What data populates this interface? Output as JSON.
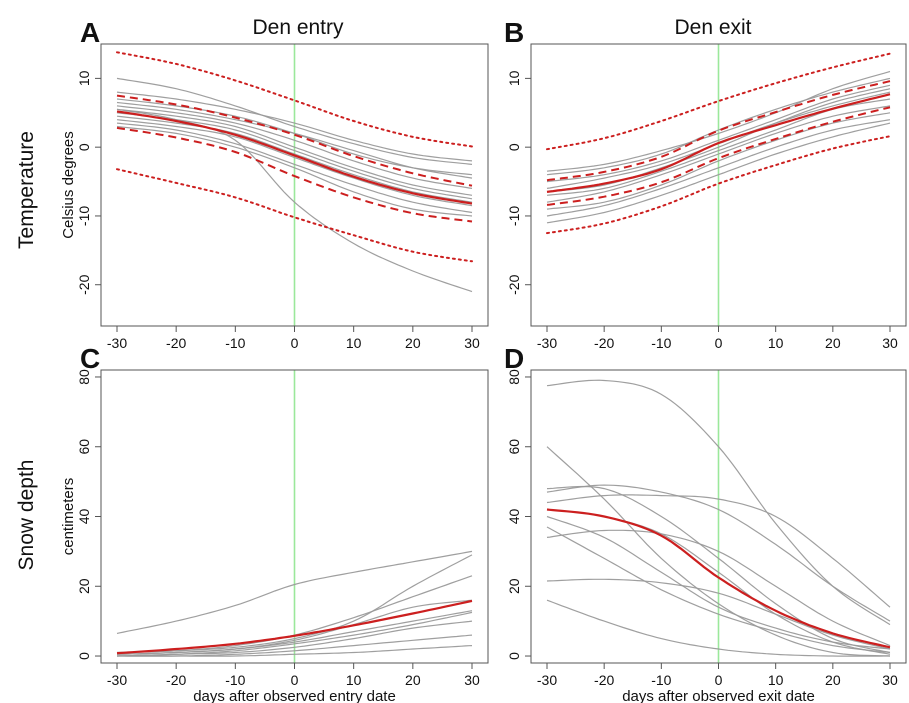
{
  "figure": {
    "column_titles": [
      "Den entry",
      "Den exit"
    ],
    "row_titles": [
      "Temperature",
      "Snow depth"
    ]
  },
  "colors": {
    "individual_lines": "#9a9a9a",
    "mean_line": "#cc1f1f",
    "observed_date_marker": "#9be89b",
    "axes": "#555555"
  },
  "chart_data": [
    {
      "panel": "A",
      "type": "line",
      "column": "Den entry",
      "row": "Temperature",
      "xlabel": "",
      "ylabel": "Celsius degrees",
      "xlim": [
        -30,
        30
      ],
      "ylim": [
        -26,
        15
      ],
      "xticks": [
        -30,
        -20,
        -10,
        0,
        10,
        20,
        30
      ],
      "yticks": [
        -20,
        -10,
        0,
        10
      ],
      "marker_x": 0,
      "individual_curves": [
        {
          "y": [
            10,
            8.5,
            6,
            3,
            0.5,
            -1.5,
            -2.5
          ]
        },
        {
          "y": [
            8,
            7,
            5.5,
            3.5,
            1,
            -1,
            -2
          ]
        },
        {
          "y": [
            6.5,
            5.5,
            4,
            2,
            -0.5,
            -3,
            -4.5
          ]
        },
        {
          "y": [
            6,
            5,
            3.5,
            1,
            -2,
            -4.5,
            -6
          ]
        },
        {
          "y": [
            5.5,
            4.5,
            3,
            0,
            -3,
            -5.5,
            -7
          ]
        },
        {
          "y": [
            5,
            4,
            2.5,
            -0.5,
            -3.5,
            -6,
            -7.5
          ]
        },
        {
          "y": [
            4.5,
            3.5,
            2,
            -1,
            -4,
            -6.5,
            -8
          ]
        },
        {
          "y": [
            4,
            3,
            1.5,
            -1.5,
            -4.5,
            -7,
            -8.5
          ]
        },
        {
          "y": [
            3.5,
            2.5,
            0.5,
            -2.5,
            -5.5,
            -8,
            -9.5
          ]
        },
        {
          "y": [
            3,
            2,
            0,
            -3,
            -6.5,
            -9,
            -10
          ]
        },
        {
          "y": [
            7,
            6,
            4.5,
            2,
            -1,
            -3,
            -4
          ]
        },
        {
          "y": [
            5.5,
            4,
            1,
            -8,
            -14,
            -18,
            -21
          ]
        }
      ],
      "mean": {
        "y": [
          5.2,
          3.8,
          1.8,
          -1.2,
          -4.3,
          -6.7,
          -8.2
        ]
      },
      "inner_band": {
        "upper": [
          7.5,
          6.2,
          4.3,
          1.8,
          -1.3,
          -3.8,
          -5.6
        ],
        "lower": [
          2.8,
          1.4,
          -0.7,
          -4.2,
          -7.3,
          -9.6,
          -10.8
        ]
      },
      "outer_band": {
        "upper": [
          13.8,
          12.1,
          9.7,
          6.8,
          3.8,
          1.5,
          0.1
        ],
        "lower": [
          -3.2,
          -5.2,
          -7.3,
          -10.2,
          -12.8,
          -15.2,
          -16.6
        ]
      }
    },
    {
      "panel": "B",
      "type": "line",
      "column": "Den exit",
      "row": "Temperature",
      "xlabel": "",
      "ylabel": "",
      "xlim": [
        -30,
        30
      ],
      "ylim": [
        -26,
        15
      ],
      "xticks": [
        -30,
        -20,
        -10,
        0,
        10,
        20,
        30
      ],
      "yticks": [
        -20,
        -10,
        0,
        10
      ],
      "marker_x": 0,
      "individual_curves": [
        {
          "y": [
            -3.5,
            -2.5,
            -0.5,
            2,
            5,
            8.5,
            11
          ]
        },
        {
          "y": [
            -4,
            -3,
            -1,
            2.5,
            5.5,
            8,
            10
          ]
        },
        {
          "y": [
            -5,
            -4,
            -2,
            1,
            4,
            7,
            9
          ]
        },
        {
          "y": [
            -6,
            -4.5,
            -2.5,
            0.5,
            3.5,
            6,
            8
          ]
        },
        {
          "y": [
            -7,
            -6,
            -3.5,
            -0.5,
            2.5,
            5.5,
            7
          ]
        },
        {
          "y": [
            -8,
            -6.5,
            -4,
            -1,
            2,
            4.5,
            6
          ]
        },
        {
          "y": [
            -9,
            -8,
            -5.5,
            -2,
            1,
            3.5,
            5
          ]
        },
        {
          "y": [
            -10,
            -8.5,
            -6,
            -3,
            0,
            2.5,
            4
          ]
        },
        {
          "y": [
            -11,
            -9.5,
            -7,
            -4,
            -1,
            1.5,
            3.5
          ]
        },
        {
          "y": [
            -6.5,
            -5.5,
            -3,
            0,
            3.5,
            6.5,
            8.5
          ]
        }
      ],
      "mean": {
        "y": [
          -6.5,
          -5.3,
          -3.2,
          0.6,
          3.2,
          5.6,
          7.7
        ]
      },
      "inner_band": {
        "upper": [
          -4.8,
          -3.6,
          -1.4,
          2.4,
          5.1,
          7.6,
          9.6
        ],
        "lower": [
          -8.4,
          -7.2,
          -5.1,
          -1.6,
          1.2,
          3.7,
          5.8
        ]
      },
      "outer_band": {
        "upper": [
          -0.3,
          1.3,
          3.8,
          6.7,
          9.3,
          11.6,
          13.6
        ],
        "lower": [
          -12.5,
          -11.1,
          -8.6,
          -5.3,
          -2.6,
          -0.2,
          1.6
        ]
      }
    },
    {
      "panel": "C",
      "type": "line",
      "column": "Den entry",
      "row": "Snow depth",
      "xlabel": "days after observed entry date",
      "ylabel": "centimeters",
      "xlim": [
        -30,
        30
      ],
      "ylim": [
        -2,
        82
      ],
      "xticks": [
        -30,
        -20,
        -10,
        0,
        10,
        20,
        30
      ],
      "yticks": [
        0,
        20,
        40,
        60,
        80
      ],
      "marker_x": 0,
      "individual_curves": [
        {
          "y": [
            6.5,
            10,
            14.5,
            20.5,
            24,
            27,
            30
          ]
        },
        {
          "y": [
            1,
            1.5,
            3,
            6,
            11,
            17,
            23
          ]
        },
        {
          "y": [
            0.5,
            1,
            2,
            4.5,
            9,
            14,
            16
          ]
        },
        {
          "y": [
            0.5,
            1,
            2,
            4,
            7,
            10,
            13
          ]
        },
        {
          "y": [
            0,
            0.5,
            1.5,
            3.5,
            6,
            9,
            12.5
          ]
        },
        {
          "y": [
            0,
            0.5,
            1,
            2.5,
            5,
            8,
            10
          ]
        },
        {
          "y": [
            0,
            0,
            0.5,
            1.5,
            3,
            4.5,
            6
          ]
        },
        {
          "y": [
            0,
            0,
            0,
            0.5,
            1,
            2,
            3
          ]
        },
        {
          "y": [
            1,
            1.5,
            2.5,
            5,
            10,
            20,
            29
          ]
        }
      ],
      "mean": {
        "y": [
          0.8,
          2,
          3.5,
          5.8,
          8.8,
          12.2,
          15.8
        ]
      }
    },
    {
      "panel": "D",
      "type": "line",
      "column": "Den exit",
      "row": "Snow depth",
      "xlabel": "days after observed exit date",
      "ylabel": "",
      "xlim": [
        -30,
        30
      ],
      "ylim": [
        -2,
        82
      ],
      "xticks": [
        -30,
        -20,
        -10,
        0,
        10,
        20,
        30
      ],
      "yticks": [
        0,
        20,
        40,
        60,
        80
      ],
      "marker_x": 0,
      "individual_curves": [
        {
          "y": [
            77.5,
            79,
            75,
            60,
            38,
            20,
            9
          ]
        },
        {
          "y": [
            60,
            45,
            28,
            15,
            6,
            1,
            0
          ]
        },
        {
          "y": [
            47,
            49,
            47,
            42,
            32,
            20,
            10
          ]
        },
        {
          "y": [
            48,
            48,
            40,
            28,
            15,
            5,
            1
          ]
        },
        {
          "y": [
            44,
            46,
            46,
            45,
            40,
            28,
            14
          ]
        },
        {
          "y": [
            40,
            34,
            24,
            14,
            8,
            4,
            2
          ]
        },
        {
          "y": [
            37,
            28,
            19,
            12,
            7,
            3,
            1
          ]
        },
        {
          "y": [
            34,
            36,
            35,
            30,
            20,
            10,
            3
          ]
        },
        {
          "y": [
            21.5,
            22,
            21,
            18,
            12,
            6,
            2
          ]
        },
        {
          "y": [
            16,
            10,
            5,
            2,
            0.5,
            0,
            0
          ]
        },
        {
          "y": [
            42,
            40,
            35,
            24,
            12,
            4,
            0.5
          ]
        }
      ],
      "mean": {
        "y": [
          42,
          40,
          34.5,
          22.5,
          13,
          6.5,
          2.5
        ]
      }
    }
  ]
}
